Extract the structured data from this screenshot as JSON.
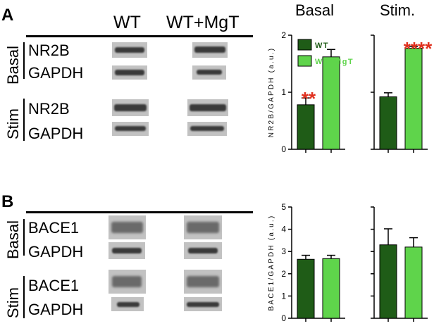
{
  "panel_a": {
    "letter": "A",
    "columns": [
      "WT",
      "WT+MgT"
    ],
    "conditions": [
      "Basal",
      "Stim"
    ],
    "rows": [
      "NR2B",
      "GAPDH",
      "NR2B",
      "GAPDH"
    ]
  },
  "panel_b": {
    "letter": "B",
    "columns": [],
    "conditions": [
      "Basal",
      "Stim"
    ],
    "rows": [
      "BACE1",
      "GAPDH",
      "BACE1",
      "GAPDH"
    ]
  },
  "chart_headers": [
    "Basal",
    "Stim."
  ],
  "colors": {
    "wt": "#1f5c17",
    "mgt": "#5fd44b",
    "stars": "#e0301e"
  },
  "chart_data": [
    {
      "type": "bar",
      "title": "Basal",
      "ylabel": "NR2B/GAPDH (a.u.)",
      "ylim": [
        0,
        2
      ],
      "yticks": [
        "0",
        "1",
        "2"
      ],
      "categories": [
        "WT",
        "WT+MgT"
      ],
      "values": [
        0.78,
        1.62
      ],
      "errors": [
        0.12,
        0.13
      ],
      "legend": [
        "WT",
        "WT+MgT"
      ],
      "legend_position": "top-left",
      "annotation": "**"
    },
    {
      "type": "bar",
      "title": "Stim.",
      "ylim": [
        0,
        2
      ],
      "categories": [
        "WT",
        "WT+MgT"
      ],
      "values": [
        0.92,
        1.77
      ],
      "errors": [
        0.07,
        0.03
      ],
      "annotation": "****"
    },
    {
      "type": "bar",
      "ylabel": "BACE1/GAPDH (a.u.)",
      "ylim": [
        0,
        5
      ],
      "yticks": [
        "0",
        "1",
        "2",
        "3",
        "4",
        "5"
      ],
      "categories": [
        "WT",
        "WT+MgT"
      ],
      "values": [
        2.65,
        2.68
      ],
      "errors": [
        0.18,
        0.15
      ]
    },
    {
      "type": "bar",
      "ylim": [
        0,
        5
      ],
      "categories": [
        "WT",
        "WT+MgT"
      ],
      "values": [
        3.3,
        3.2
      ],
      "errors": [
        0.72,
        0.42
      ]
    }
  ]
}
